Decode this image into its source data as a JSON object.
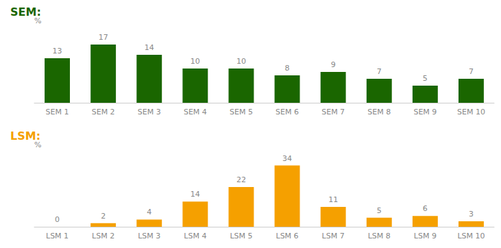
{
  "chart_data": [
    {
      "type": "bar",
      "title": "SEM:",
      "ylabel": "%",
      "categories": [
        "SEM 1",
        "SEM 2",
        "SEM 3",
        "SEM 4",
        "SEM 5",
        "SEM 6",
        "SEM 7",
        "SEM 8",
        "SEM 9",
        "SEM 10"
      ],
      "values": [
        13,
        17,
        14,
        10,
        10,
        8,
        9,
        7,
        5,
        7
      ],
      "color": "#1a6600",
      "ylim": [
        0,
        20
      ],
      "grid": false,
      "data_labels": true,
      "tick_labels": "x"
    },
    {
      "type": "bar",
      "title": "LSM:",
      "ylabel": "%",
      "categories": [
        "LSM 1",
        "LSM 2",
        "LSM 3",
        "LSM 4",
        "LSM 5",
        "LSM 6",
        "LSM 7",
        "LSM 8",
        "LSM 9",
        "LSM 10"
      ],
      "values": [
        0,
        2,
        4,
        14,
        22,
        34,
        11,
        5,
        6,
        3
      ],
      "color": "#f5a000",
      "ylim": [
        0,
        38
      ],
      "grid": false,
      "data_labels": true,
      "tick_labels": "x"
    }
  ]
}
